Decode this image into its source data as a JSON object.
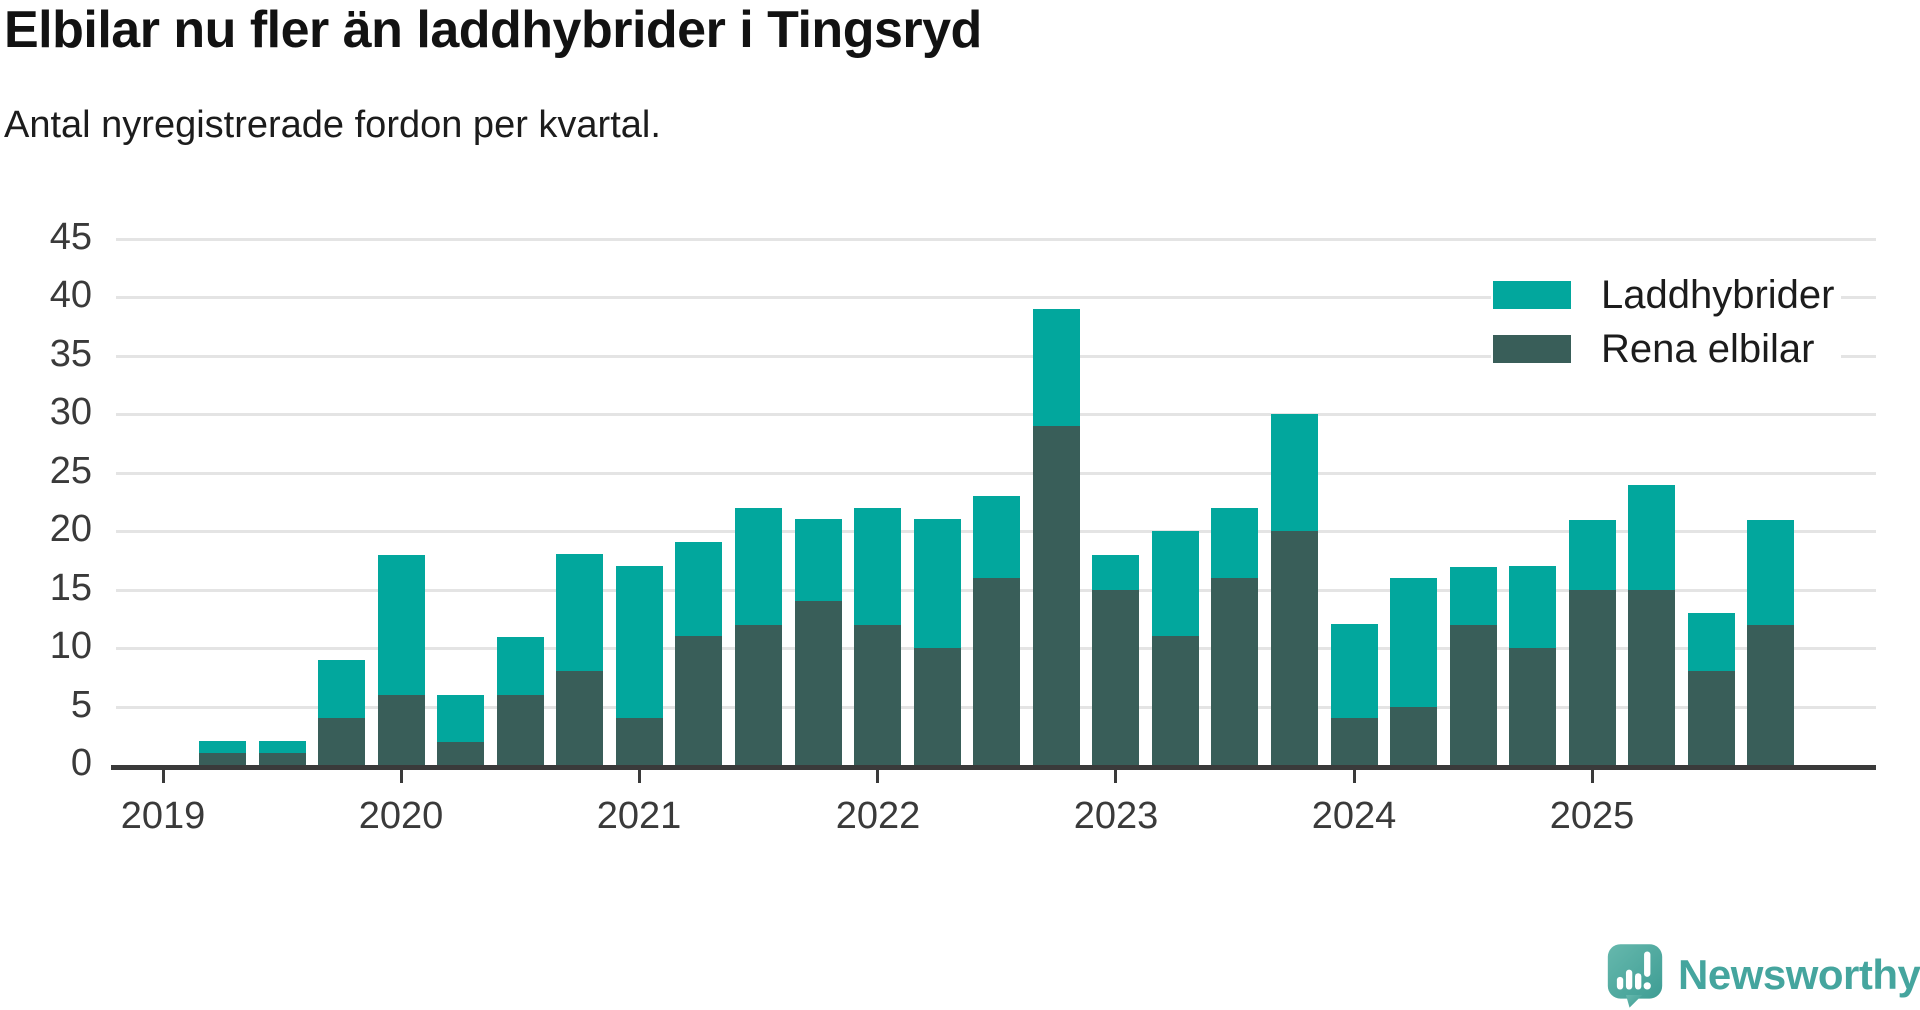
{
  "chart_data": {
    "type": "bar",
    "stacked": true,
    "title": "Elbilar nu fler än laddhybrider i Tingsryd",
    "subtitle": "Antal nyregistrerade fordon per kvartal.",
    "categories": [
      "2019 Q1",
      "2019 Q2",
      "2019 Q3",
      "2019 Q4",
      "2020 Q1",
      "2020 Q2",
      "2020 Q3",
      "2020 Q4",
      "2021 Q1",
      "2021 Q2",
      "2021 Q3",
      "2021 Q4",
      "2022 Q1",
      "2022 Q2",
      "2022 Q3",
      "2022 Q4",
      "2023 Q1",
      "2023 Q2",
      "2023 Q3",
      "2023 Q4",
      "2024 Q1",
      "2024 Q2",
      "2024 Q3",
      "2024 Q4",
      "2025 Q1",
      "2025 Q2",
      "2025 Q3",
      "2025 Q4"
    ],
    "series": [
      {
        "name": "Rena elbilar",
        "color": "#395e59",
        "stack_position": "bottom",
        "values": [
          0,
          1,
          1,
          4,
          6,
          2,
          6,
          8,
          4,
          11,
          12,
          14,
          12,
          10,
          16,
          29,
          15,
          11,
          16,
          20,
          4,
          5,
          12,
          10,
          15,
          15,
          8,
          12
        ]
      },
      {
        "name": "Laddhybrider",
        "color": "#02a79d",
        "stack_position": "top",
        "values": [
          0,
          1,
          1,
          5,
          12,
          4,
          5,
          10,
          13,
          8,
          10,
          7,
          10,
          11,
          7,
          10,
          3,
          9,
          6,
          10,
          8,
          11,
          5,
          7,
          6,
          9,
          5,
          9
        ]
      }
    ],
    "totals": [
      0,
      2,
      2,
      9,
      18,
      6,
      11,
      18,
      17,
      19,
      22,
      21,
      22,
      21,
      23,
      39,
      18,
      20,
      22,
      30,
      12,
      16,
      17,
      17,
      21,
      24,
      13,
      21
    ],
    "ylim": [
      0,
      45
    ],
    "yticks": [
      0,
      5,
      10,
      15,
      20,
      25,
      30,
      35,
      40,
      45
    ],
    "xticks": [
      {
        "label": "2019",
        "category_index": 0
      },
      {
        "label": "2020",
        "category_index": 4
      },
      {
        "label": "2021",
        "category_index": 8
      },
      {
        "label": "2022",
        "category_index": 12
      },
      {
        "label": "2023",
        "category_index": 16
      },
      {
        "label": "2024",
        "category_index": 20
      },
      {
        "label": "2025",
        "category_index": 24
      }
    ],
    "grid": "horizontal",
    "legend_position": "top-right"
  },
  "legend": {
    "items": [
      {
        "label": "Laddhybrider",
        "color": "#02a79d"
      },
      {
        "label": "Rena elbilar",
        "color": "#395e59"
      }
    ]
  },
  "branding": {
    "logo_text": "Newsworthy",
    "logo_color": "#45a59e"
  },
  "colors": {
    "laddhybrider": "#02a79d",
    "rena_elbilar": "#395e59",
    "gridline": "#e4e4e4",
    "axis": "#3a3a3a",
    "background": "#ffffff"
  }
}
